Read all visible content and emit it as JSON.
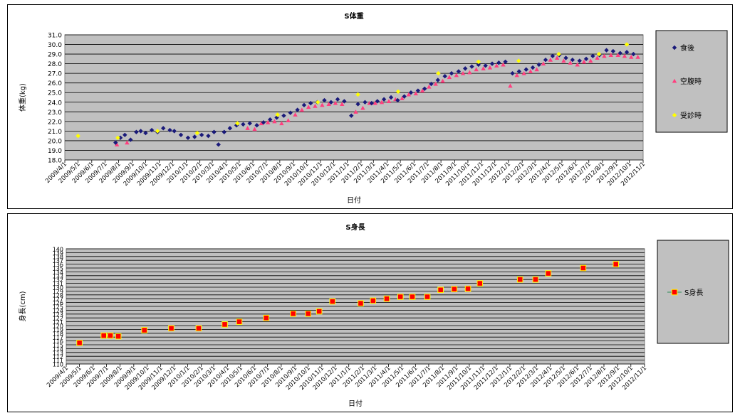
{
  "chart_data": [
    {
      "type": "scatter",
      "title": "S体重",
      "xlabel": "日付",
      "ylabel": "体重(kg)",
      "ylim": [
        18.0,
        31.0
      ],
      "yticks": [
        "18.0",
        "19.0",
        "20.0",
        "21.0",
        "22.0",
        "23.0",
        "24.0",
        "25.0",
        "26.0",
        "27.0",
        "28.0",
        "29.0",
        "30.0",
        "31.0"
      ],
      "xticks": [
        "2009/4/1",
        "2009/5/1",
        "2009/6/1",
        "2009/7/1",
        "2009/8/1",
        "2009/9/1",
        "2009/10/1",
        "2009/11/1",
        "2009/12/1",
        "2010/1/1",
        "2010/2/1",
        "2010/3/1",
        "2010/4/1",
        "2010/5/1",
        "2010/6/1",
        "2010/7/1",
        "2010/8/1",
        "2010/9/1",
        "2010/10/1",
        "2010/11/1",
        "2010/12/1",
        "2011/1/1",
        "2011/2/1",
        "2011/3/1",
        "2011/4/1",
        "2011/5/1",
        "2011/6/1",
        "2011/7/1",
        "2011/8/1",
        "2011/9/1",
        "2011/10/1",
        "2011/11/1",
        "2011/12/1",
        "2012/1/1",
        "2012/2/1",
        "2012/3/1",
        "2012/4/1",
        "2012/5/1",
        "2012/6/1",
        "2012/7/1",
        "2012/8/1",
        "2012/9/1",
        "2012/10/1",
        "2012/11/1"
      ],
      "grid": true,
      "legend_position": "right",
      "colors": {
        "食後": "#1a1a7a",
        "空腹時": "#ff3f7f",
        "受診時": "#ffff00"
      },
      "series": [
        {
          "name": "食後",
          "marker": "diamond",
          "points": [
            [
              "2009/7/25",
              19.8
            ],
            [
              "2009/8/5",
              20.3
            ],
            [
              "2009/8/15",
              20.6
            ],
            [
              "2009/8/28",
              20.1
            ],
            [
              "2009/9/10",
              20.9
            ],
            [
              "2009/9/20",
              21.0
            ],
            [
              "2009/10/1",
              20.8
            ],
            [
              "2009/10/15",
              21.1
            ],
            [
              "2009/10/28",
              20.9
            ],
            [
              "2009/11/10",
              21.3
            ],
            [
              "2009/11/25",
              21.1
            ],
            [
              "2009/12/5",
              21.0
            ],
            [
              "2009/12/20",
              20.6
            ],
            [
              "2010/1/5",
              20.3
            ],
            [
              "2010/1/20",
              20.4
            ],
            [
              "2010/2/5",
              20.6
            ],
            [
              "2010/2/20",
              20.5
            ],
            [
              "2010/3/5",
              20.9
            ],
            [
              "2010/3/15",
              19.6
            ],
            [
              "2010/3/28",
              20.9
            ],
            [
              "2010/4/10",
              21.3
            ],
            [
              "2010/4/25",
              21.6
            ],
            [
              "2010/5/10",
              21.7
            ],
            [
              "2010/5/25",
              21.8
            ],
            [
              "2010/6/10",
              21.6
            ],
            [
              "2010/6/25",
              21.9
            ],
            [
              "2010/7/10",
              22.2
            ],
            [
              "2010/7/25",
              22.4
            ],
            [
              "2010/8/10",
              22.6
            ],
            [
              "2010/8/25",
              22.9
            ],
            [
              "2010/9/10",
              23.2
            ],
            [
              "2010/9/25",
              23.7
            ],
            [
              "2010/10/10",
              23.9
            ],
            [
              "2010/10/25",
              24.0
            ],
            [
              "2010/11/10",
              24.2
            ],
            [
              "2010/11/25",
              24.0
            ],
            [
              "2010/12/10",
              24.3
            ],
            [
              "2010/12/25",
              24.1
            ],
            [
              "2011/1/10",
              22.6
            ],
            [
              "2011/1/25",
              23.8
            ],
            [
              "2011/2/10",
              24.0
            ],
            [
              "2011/2/25",
              23.9
            ],
            [
              "2011/3/10",
              24.1
            ],
            [
              "2011/3/25",
              24.3
            ],
            [
              "2011/4/10",
              24.5
            ],
            [
              "2011/4/25",
              24.2
            ],
            [
              "2011/5/10",
              24.6
            ],
            [
              "2011/5/25",
              25.0
            ],
            [
              "2011/6/10",
              25.2
            ],
            [
              "2011/6/25",
              25.4
            ],
            [
              "2011/7/10",
              25.9
            ],
            [
              "2011/7/25",
              26.3
            ],
            [
              "2011/8/10",
              26.7
            ],
            [
              "2011/8/25",
              27.0
            ],
            [
              "2011/9/10",
              27.2
            ],
            [
              "2011/9/25",
              27.5
            ],
            [
              "2011/10/10",
              27.7
            ],
            [
              "2011/10/25",
              27.9
            ],
            [
              "2011/11/10",
              27.8
            ],
            [
              "2011/11/25",
              28.0
            ],
            [
              "2011/12/10",
              28.1
            ],
            [
              "2011/12/25",
              28.2
            ],
            [
              "2012/1/10",
              27.0
            ],
            [
              "2012/1/25",
              27.2
            ],
            [
              "2012/2/10",
              27.4
            ],
            [
              "2012/2/25",
              27.6
            ],
            [
              "2012/3/10",
              27.9
            ],
            [
              "2012/3/25",
              28.4
            ],
            [
              "2012/4/10",
              28.8
            ],
            [
              "2012/4/25",
              28.9
            ],
            [
              "2012/5/10",
              28.6
            ],
            [
              "2012/5/25",
              28.4
            ],
            [
              "2012/6/10",
              28.3
            ],
            [
              "2012/6/25",
              28.5
            ],
            [
              "2012/7/10",
              28.8
            ],
            [
              "2012/7/25",
              28.9
            ],
            [
              "2012/8/10",
              29.4
            ],
            [
              "2012/8/25",
              29.3
            ],
            [
              "2012/9/10",
              29.1
            ],
            [
              "2012/9/25",
              29.2
            ],
            [
              "2012/10/10",
              29.0
            ]
          ]
        },
        {
          "name": "空腹時",
          "marker": "triangle",
          "points": [
            [
              "2009/7/28",
              19.6
            ],
            [
              "2009/8/20",
              19.8
            ],
            [
              "2010/5/20",
              21.3
            ],
            [
              "2010/6/5",
              21.2
            ],
            [
              "2010/6/20",
              21.8
            ],
            [
              "2010/7/5",
              21.9
            ],
            [
              "2010/7/20",
              22.0
            ],
            [
              "2010/8/5",
              21.8
            ],
            [
              "2010/8/20",
              22.1
            ],
            [
              "2010/9/5",
              22.7
            ],
            [
              "2010/9/20",
              23.2
            ],
            [
              "2010/10/5",
              23.5
            ],
            [
              "2010/10/20",
              23.6
            ],
            [
              "2010/11/5",
              23.7
            ],
            [
              "2010/11/20",
              23.8
            ],
            [
              "2010/12/5",
              23.9
            ],
            [
              "2010/12/20",
              23.8
            ],
            [
              "2011/1/20",
              23.0
            ],
            [
              "2011/2/5",
              23.4
            ],
            [
              "2011/2/20",
              23.9
            ],
            [
              "2011/3/5",
              23.9
            ],
            [
              "2011/3/20",
              24.0
            ],
            [
              "2011/4/5",
              24.1
            ],
            [
              "2011/4/20",
              24.3
            ],
            [
              "2011/5/5",
              24.4
            ],
            [
              "2011/5/20",
              24.8
            ],
            [
              "2011/6/5",
              24.9
            ],
            [
              "2011/6/20",
              25.2
            ],
            [
              "2011/7/5",
              25.6
            ],
            [
              "2011/7/20",
              25.9
            ],
            [
              "2011/8/5",
              26.2
            ],
            [
              "2011/8/20",
              26.6
            ],
            [
              "2011/9/5",
              26.8
            ],
            [
              "2011/9/20",
              27.0
            ],
            [
              "2011/10/5",
              27.1
            ],
            [
              "2011/10/20",
              27.4
            ],
            [
              "2011/11/5",
              27.5
            ],
            [
              "2011/11/20",
              27.6
            ],
            [
              "2011/12/5",
              27.8
            ],
            [
              "2011/12/20",
              27.9
            ],
            [
              "2012/1/5",
              25.7
            ],
            [
              "2012/1/20",
              26.8
            ],
            [
              "2012/2/5",
              27.0
            ],
            [
              "2012/2/20",
              27.2
            ],
            [
              "2012/3/5",
              27.4
            ],
            [
              "2012/3/20",
              28.0
            ],
            [
              "2012/4/5",
              28.4
            ],
            [
              "2012/4/20",
              28.6
            ],
            [
              "2012/5/5",
              28.3
            ],
            [
              "2012/5/20",
              28.1
            ],
            [
              "2012/6/5",
              27.9
            ],
            [
              "2012/6/20",
              28.2
            ],
            [
              "2012/7/5",
              28.3
            ],
            [
              "2012/7/20",
              28.6
            ],
            [
              "2012/8/5",
              28.8
            ],
            [
              "2012/8/20",
              28.9
            ],
            [
              "2012/9/5",
              28.9
            ],
            [
              "2012/9/20",
              28.8
            ],
            [
              "2012/10/5",
              28.7
            ],
            [
              "2012/10/20",
              28.7
            ]
          ]
        },
        {
          "name": "受診時",
          "marker": "diamond",
          "points": [
            [
              "2009/5/1",
              20.5
            ],
            [
              "2009/7/30",
              20.3
            ],
            [
              "2009/10/28",
              21.0
            ],
            [
              "2010/1/26",
              20.8
            ],
            [
              "2010/4/27",
              21.8
            ],
            [
              "2010/7/27",
              22.7
            ],
            [
              "2010/10/26",
              24.0
            ],
            [
              "2011/1/25",
              24.8
            ],
            [
              "2011/4/26",
              25.1
            ],
            [
              "2011/7/26",
              27.0
            ],
            [
              "2011/10/25",
              28.2
            ],
            [
              "2012/1/24",
              28.3
            ],
            [
              "2012/4/24",
              29.0
            ],
            [
              "2012/7/24",
              29.0
            ],
            [
              "2012/9/25",
              30.0
            ]
          ]
        }
      ]
    },
    {
      "type": "line",
      "title": "S身長",
      "xlabel": "日付",
      "ylabel": "身長(cm)",
      "ylim": [
        110,
        140
      ],
      "yticks": [
        "110",
        "111",
        "112",
        "113",
        "114",
        "115",
        "116",
        "117",
        "118",
        "119",
        "120",
        "121",
        "122",
        "123",
        "124",
        "125",
        "126",
        "127",
        "128",
        "129",
        "130",
        "131",
        "132",
        "133",
        "134",
        "135",
        "136",
        "137",
        "138",
        "139",
        "140"
      ],
      "xticks": [
        "2009/4/1",
        "2009/5/1",
        "2009/6/1",
        "2009/7/1",
        "2009/8/1",
        "2009/9/1",
        "2009/10/1",
        "2009/11/1",
        "2009/12/1",
        "2010/1/1",
        "2010/2/1",
        "2010/3/1",
        "2010/4/1",
        "2010/5/1",
        "2010/6/1",
        "2010/7/1",
        "2010/8/1",
        "2010/9/1",
        "2010/10/1",
        "2010/11/1",
        "2010/12/1",
        "2011/1/1",
        "2011/2/1",
        "2011/3/1",
        "2011/4/1",
        "2011/5/1",
        "2011/6/1",
        "2011/7/1",
        "2011/8/1",
        "2011/9/1",
        "2011/10/1",
        "2011/11/1",
        "2011/12/1",
        "2012/1/1",
        "2012/2/1",
        "2012/3/1",
        "2012/4/1",
        "2012/5/1",
        "2012/6/1",
        "2012/7/1",
        "2012/8/1",
        "2012/9/1",
        "2012/10/1",
        "2012/11/1"
      ],
      "grid": true,
      "legend_position": "right",
      "colors": {
        "fill": "#ff0000",
        "edge": "#ffff00"
      },
      "series": [
        {
          "name": "S身長",
          "marker": "square",
          "points": [
            [
              "2009/5/1",
              115.5
            ],
            [
              "2009/6/25",
              117.4
            ],
            [
              "2009/7/10",
              117.4
            ],
            [
              "2009/7/28",
              117.2
            ],
            [
              "2009/9/25",
              118.8
            ],
            [
              "2009/11/25",
              119.3
            ],
            [
              "2010/1/26",
              119.3
            ],
            [
              "2010/3/26",
              120.3
            ],
            [
              "2010/4/28",
              121.0
            ],
            [
              "2010/6/28",
              122.0
            ],
            [
              "2010/8/28",
              123.1
            ],
            [
              "2010/10/1",
              123.1
            ],
            [
              "2010/10/26",
              123.7
            ],
            [
              "2010/11/25",
              126.3
            ],
            [
              "2011/1/28",
              125.8
            ],
            [
              "2011/2/25",
              126.5
            ],
            [
              "2011/3/28",
              127.0
            ],
            [
              "2011/4/28",
              127.5
            ],
            [
              "2011/5/25",
              127.5
            ],
            [
              "2011/6/28",
              127.5
            ],
            [
              "2011/7/28",
              129.3
            ],
            [
              "2011/8/28",
              129.5
            ],
            [
              "2011/9/28",
              129.6
            ],
            [
              "2011/10/25",
              131.0
            ],
            [
              "2012/1/24",
              132.0
            ],
            [
              "2012/2/28",
              132.0
            ],
            [
              "2012/3/28",
              133.6
            ],
            [
              "2012/6/15",
              135.0
            ],
            [
              "2012/8/28",
              136.0
            ]
          ]
        }
      ]
    }
  ]
}
